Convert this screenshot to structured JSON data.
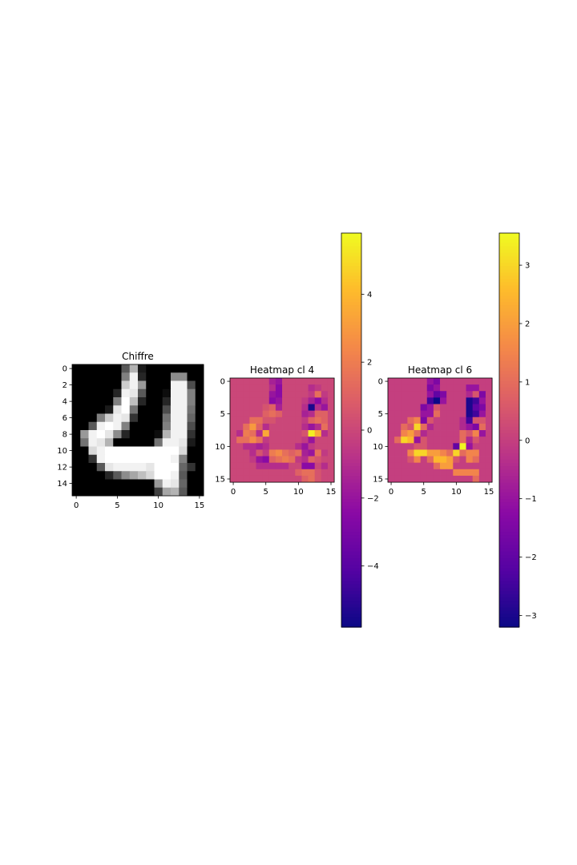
{
  "chart_data": [
    {
      "type": "heatmap",
      "title": "Chiffre",
      "colormap": "gray",
      "vmin": 0,
      "vmax": 1,
      "xticks": [
        "0",
        "5",
        "10",
        "15"
      ],
      "yticks": [
        "0",
        "2",
        "4",
        "6",
        "8",
        "10",
        "12",
        "14"
      ],
      "values": [
        [
          0,
          0,
          0,
          0,
          0,
          0,
          0.35,
          0.7,
          0.1,
          0,
          0,
          0,
          0,
          0,
          0,
          0
        ],
        [
          0,
          0,
          0,
          0,
          0,
          0,
          0.5,
          0.95,
          0.15,
          0,
          0,
          0,
          0.55,
          0.55,
          0,
          0
        ],
        [
          0,
          0,
          0,
          0,
          0,
          0,
          0.8,
          0.95,
          0.6,
          0,
          0,
          0,
          0.95,
          0.95,
          0.3,
          0
        ],
        [
          0,
          0,
          0,
          0,
          0,
          0.15,
          0.95,
          0.9,
          0.35,
          0,
          0,
          0.05,
          0.95,
          0.95,
          0.5,
          0
        ],
        [
          0,
          0,
          0,
          0,
          0,
          0.5,
          1,
          0.75,
          0.15,
          0,
          0,
          0.15,
          0.95,
          0.95,
          0.5,
          0
        ],
        [
          0,
          0,
          0,
          0,
          0.1,
          0.9,
          1,
          0.45,
          0,
          0,
          0,
          0.3,
          0.95,
          0.95,
          0.45,
          0
        ],
        [
          0,
          0,
          0,
          0.5,
          0.8,
          0.95,
          0.9,
          0.2,
          0,
          0,
          0,
          0.45,
          0.95,
          0.95,
          0.4,
          0
        ],
        [
          0,
          0,
          0.35,
          0.95,
          1,
          0.95,
          0.5,
          0,
          0,
          0,
          0,
          0.5,
          0.95,
          0.95,
          0.3,
          0
        ],
        [
          0,
          0.6,
          0.95,
          1,
          0.9,
          0.55,
          0.15,
          0,
          0,
          0,
          0.05,
          0.7,
          0.95,
          0.95,
          0.2,
          0
        ],
        [
          0,
          0.45,
          0.95,
          0.9,
          0.7,
          0,
          0,
          0,
          0,
          0,
          0.45,
          0.95,
          0.95,
          0.9,
          0.1,
          0
        ],
        [
          0,
          0,
          0.85,
          0.95,
          1,
          1,
          1,
          1,
          1,
          1,
          1,
          1,
          1,
          0.85,
          0,
          0
        ],
        [
          0,
          0,
          0.2,
          0.95,
          1,
          1,
          1,
          1,
          1,
          1,
          1,
          1,
          0.95,
          0.5,
          0,
          0
        ],
        [
          0,
          0,
          0,
          0.35,
          0.9,
          0.95,
          0.95,
          0.95,
          0.95,
          0.9,
          1,
          1,
          1,
          0.4,
          0.2,
          0
        ],
        [
          0,
          0,
          0,
          0,
          0.15,
          0.35,
          0.55,
          0.65,
          0.75,
          0.85,
          1,
          1,
          0.95,
          0.35,
          0,
          0
        ],
        [
          0,
          0,
          0,
          0,
          0,
          0,
          0,
          0,
          0,
          0,
          0.6,
          0.95,
          0.9,
          0.4,
          0,
          0
        ],
        [
          0,
          0,
          0,
          0,
          0,
          0,
          0,
          0,
          0,
          0,
          0.25,
          0.65,
          0.7,
          0.35,
          0,
          0
        ]
      ]
    },
    {
      "type": "heatmap",
      "title": "Heatmap cl 4",
      "colormap": "plasma",
      "vmin": -5.8,
      "vmax": 5.8,
      "xticks": [
        "0",
        "5",
        "10",
        "15"
      ],
      "yticks": [
        "0",
        "5",
        "10",
        "15"
      ],
      "colorbar_ticks": [
        "4",
        "2",
        "0",
        "−2",
        "−4"
      ],
      "colorbar_tick_values": [
        4,
        2,
        0,
        -2,
        -4
      ],
      "values": [
        [
          0,
          0,
          0,
          0,
          0,
          0,
          -1.5,
          -2,
          0,
          0,
          0,
          0,
          0,
          0,
          0,
          0
        ],
        [
          0,
          0,
          0,
          0,
          0,
          0,
          -1,
          -2.5,
          0,
          0,
          0,
          0,
          -1,
          -0.5,
          0,
          0
        ],
        [
          0,
          0,
          0,
          0,
          0,
          0,
          -2,
          -2.5,
          0,
          0,
          0,
          0,
          -0.5,
          1.5,
          -0.5,
          0
        ],
        [
          0,
          0,
          0,
          0,
          0,
          0,
          -2.5,
          -2,
          0,
          0,
          0,
          -0.5,
          -1.5,
          -2.5,
          -1,
          0
        ],
        [
          0,
          0,
          0,
          0,
          0,
          0.5,
          1,
          -1.5,
          0,
          0,
          0,
          -1,
          -5.5,
          -1,
          -2,
          0
        ],
        [
          0,
          0,
          0,
          0,
          0,
          1,
          1.5,
          1,
          0,
          0,
          0,
          -1.5,
          -1,
          1,
          1,
          0
        ],
        [
          0,
          0,
          0,
          1.5,
          1.5,
          0.5,
          0.5,
          0,
          0,
          0,
          0,
          -0.5,
          1,
          1.5,
          1,
          0
        ],
        [
          0,
          0,
          1.5,
          3,
          1,
          -1,
          0,
          0,
          0,
          0,
          0,
          -1,
          -2,
          -1,
          1.5,
          0
        ],
        [
          0,
          -1,
          2,
          1.5,
          -1,
          3.5,
          0,
          0,
          0,
          0,
          0,
          0.5,
          5.5,
          3.5,
          -1,
          0
        ],
        [
          0,
          1.5,
          1.5,
          2.5,
          1.5,
          -0.5,
          0,
          0,
          0,
          0,
          0,
          -0.5,
          -2,
          0,
          0,
          0
        ],
        [
          0,
          0,
          -1,
          -1,
          -1.5,
          -1,
          0,
          0,
          0,
          0,
          -1,
          -2,
          -0.5,
          0,
          0,
          0
        ],
        [
          0,
          0,
          0,
          -1,
          0.5,
          -0.5,
          2,
          2.5,
          1.5,
          1,
          1.5,
          -1.5,
          -2,
          1.5,
          -0.5,
          0
        ],
        [
          0,
          0,
          0,
          -0.5,
          -2,
          -2.5,
          1,
          1.5,
          2,
          1.5,
          -0.5,
          -1,
          1,
          0.5,
          0,
          0
        ],
        [
          0,
          0,
          0,
          0,
          -1,
          -1,
          -1,
          -1,
          -1,
          0,
          0,
          -2.5,
          -2.5,
          0,
          -1,
          0
        ],
        [
          0,
          0,
          0,
          0,
          0,
          0,
          0,
          0,
          0,
          0,
          1,
          1.5,
          1.5,
          0.5,
          0,
          0
        ],
        [
          0,
          0,
          0,
          0,
          0,
          0,
          0,
          0,
          0,
          0,
          0,
          1,
          1.5,
          0.5,
          0,
          0
        ]
      ]
    },
    {
      "type": "heatmap",
      "title": "Heatmap cl 6",
      "colormap": "plasma",
      "vmin": -3.2,
      "vmax": 3.55,
      "xticks": [
        "0",
        "5",
        "10",
        "15"
      ],
      "yticks": [
        "0",
        "5",
        "10",
        "15"
      ],
      "colorbar_ticks": [
        "3",
        "2",
        "1",
        "0",
        "−1",
        "−2",
        "−3"
      ],
      "colorbar_tick_values": [
        3,
        2,
        1,
        0,
        -1,
        -2,
        -3
      ],
      "values": [
        [
          0,
          0,
          0,
          0,
          0,
          0,
          -1,
          -1.5,
          0,
          0,
          0,
          0,
          0,
          0,
          0,
          0
        ],
        [
          0,
          0,
          0,
          0,
          0,
          0,
          -1.5,
          -1,
          0,
          0,
          0,
          0,
          -1,
          -1,
          0,
          0
        ],
        [
          0,
          0,
          0,
          0,
          0,
          0,
          -1,
          -2,
          -1.5,
          0,
          0,
          0,
          -0.5,
          0.5,
          -1.5,
          0
        ],
        [
          0,
          0,
          0,
          0,
          0,
          0,
          -2.5,
          -3.2,
          -1,
          0,
          0,
          0,
          -3,
          -2.5,
          -1,
          0
        ],
        [
          0,
          0,
          0,
          0,
          0,
          -1.5,
          -1,
          0.5,
          0,
          0,
          0,
          0,
          -3,
          -2,
          -1.5,
          0
        ],
        [
          0,
          0,
          0,
          0,
          0,
          -1,
          -1,
          1,
          0,
          0,
          0,
          0,
          -3,
          -2.5,
          -1,
          0
        ],
        [
          0,
          0,
          0,
          1,
          1.5,
          -1.5,
          0.5,
          0,
          0,
          0,
          0,
          -0.5,
          -2.5,
          0.5,
          0.5,
          0
        ],
        [
          0,
          0,
          1,
          0.5,
          3,
          1,
          -0.5,
          0,
          0,
          0,
          0,
          -0.5,
          -1,
          -1.5,
          1,
          0
        ],
        [
          0,
          0,
          1.5,
          2,
          1,
          -0.5,
          0,
          0,
          0,
          0,
          0,
          1,
          0.5,
          1.5,
          -1,
          0
        ],
        [
          0,
          1,
          3,
          2.5,
          -1,
          0.5,
          0,
          0,
          0,
          0,
          0,
          1,
          -0.5,
          0.5,
          0,
          0
        ],
        [
          0,
          0,
          0,
          0,
          0.5,
          0.5,
          0,
          0,
          0,
          0,
          -2,
          3.5,
          -1,
          0,
          0,
          0
        ],
        [
          0,
          0,
          0,
          1.5,
          3,
          3,
          2,
          2,
          1.5,
          1,
          3,
          1,
          1.5,
          1.5,
          0,
          0
        ],
        [
          0,
          0,
          0,
          0.5,
          1.5,
          0,
          1,
          2.5,
          2.5,
          2,
          0.5,
          0,
          1.5,
          1,
          0,
          0
        ],
        [
          0,
          0,
          0,
          0,
          0,
          0,
          0,
          1,
          2,
          2,
          0,
          0,
          0,
          0,
          0,
          0
        ],
        [
          0,
          0,
          0,
          0,
          0,
          0,
          0,
          0,
          0,
          0,
          1.5,
          1.5,
          1.5,
          1.5,
          0,
          0
        ],
        [
          0,
          0,
          0,
          0,
          0,
          0,
          0,
          0,
          0,
          0,
          0,
          0,
          0,
          1,
          0,
          0
        ]
      ]
    }
  ]
}
